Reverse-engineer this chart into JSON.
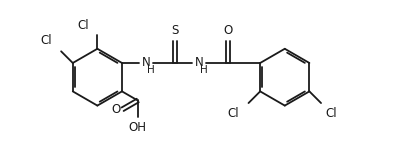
{
  "bg_color": "#ffffff",
  "line_color": "#1a1a1a",
  "line_width": 1.3,
  "font_size": 8.5,
  "fig_width": 4.06,
  "fig_height": 1.58,
  "dpi": 100,
  "xlim": [
    0,
    10.5
  ],
  "ylim": [
    -0.5,
    3.8
  ]
}
